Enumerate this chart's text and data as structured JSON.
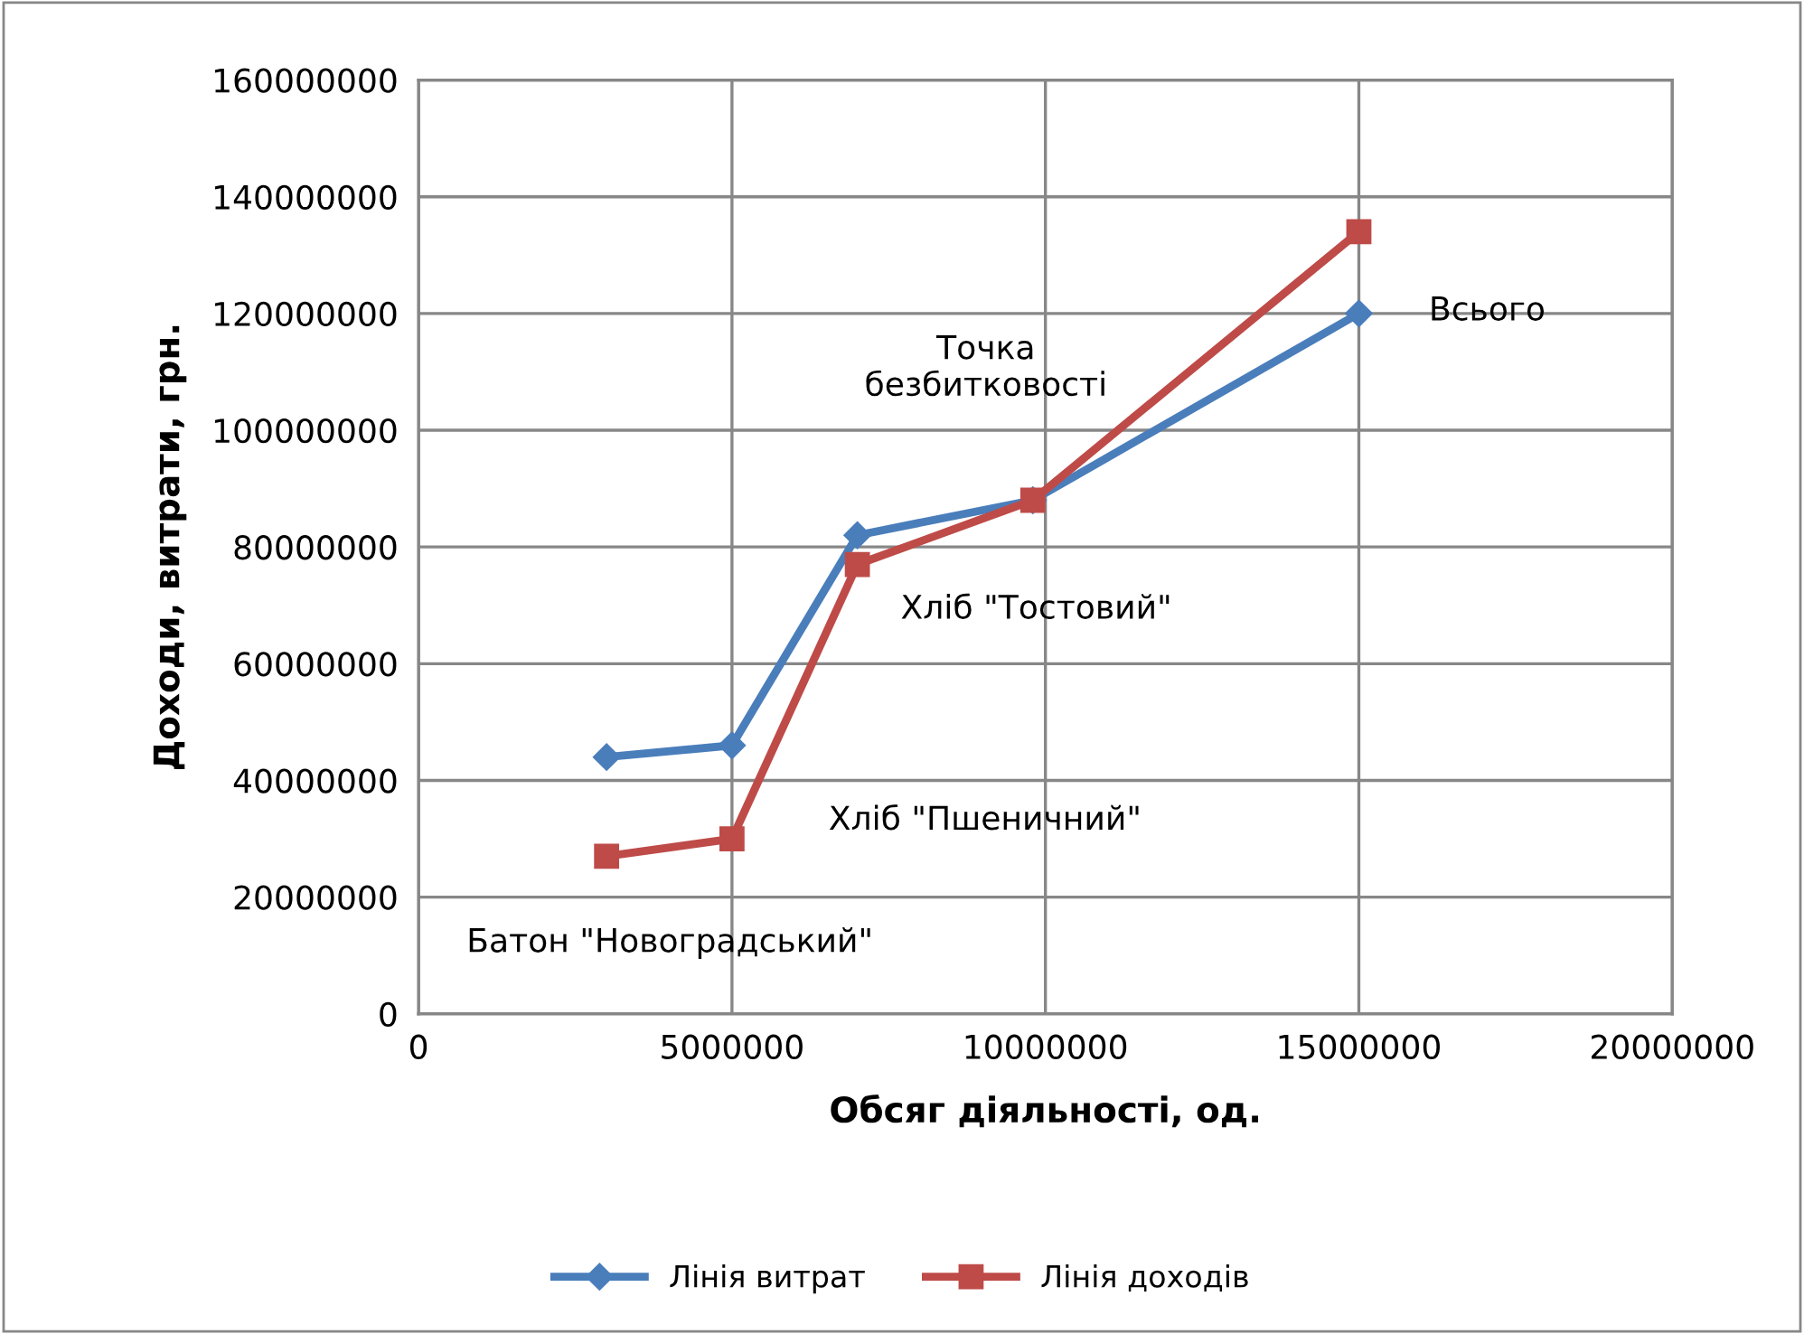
{
  "chart_data": {
    "type": "line",
    "xlabel": "Обсяг діяльності, од.",
    "ylabel": "Доходи, витрати, грн.",
    "xlim": [
      0,
      20000000
    ],
    "xticks": [
      0,
      5000000,
      10000000,
      15000000,
      20000000
    ],
    "ylim": [
      0,
      160000000
    ],
    "yticks": [
      0,
      20000000,
      40000000,
      60000000,
      80000000,
      100000000,
      120000000,
      140000000,
      160000000
    ],
    "grid": true,
    "legend": "bottom",
    "line_style": "solid",
    "series": [
      {
        "name": "Лінія витрат",
        "color": "#4a7ebb",
        "marker": "diamond",
        "x": [
          3000000,
          5000000,
          7000000,
          9800000,
          15000000
        ],
        "values": [
          44000000,
          46000000,
          82000000,
          88000000,
          120000000
        ]
      },
      {
        "name": "Лінія доходів",
        "color": "#be4b48",
        "marker": "square",
        "x": [
          3000000,
          5000000,
          7000000,
          9800000,
          15000000
        ],
        "values": [
          27000000,
          30000000,
          77000000,
          88000000,
          134000000
        ]
      }
    ],
    "annotations": [
      "Батон \"Новоградський\"",
      "Хліб \"Пшеничний\"",
      "Хліб \"Тостовий\"",
      "Точка\nбезбитковості",
      "Всього"
    ]
  }
}
